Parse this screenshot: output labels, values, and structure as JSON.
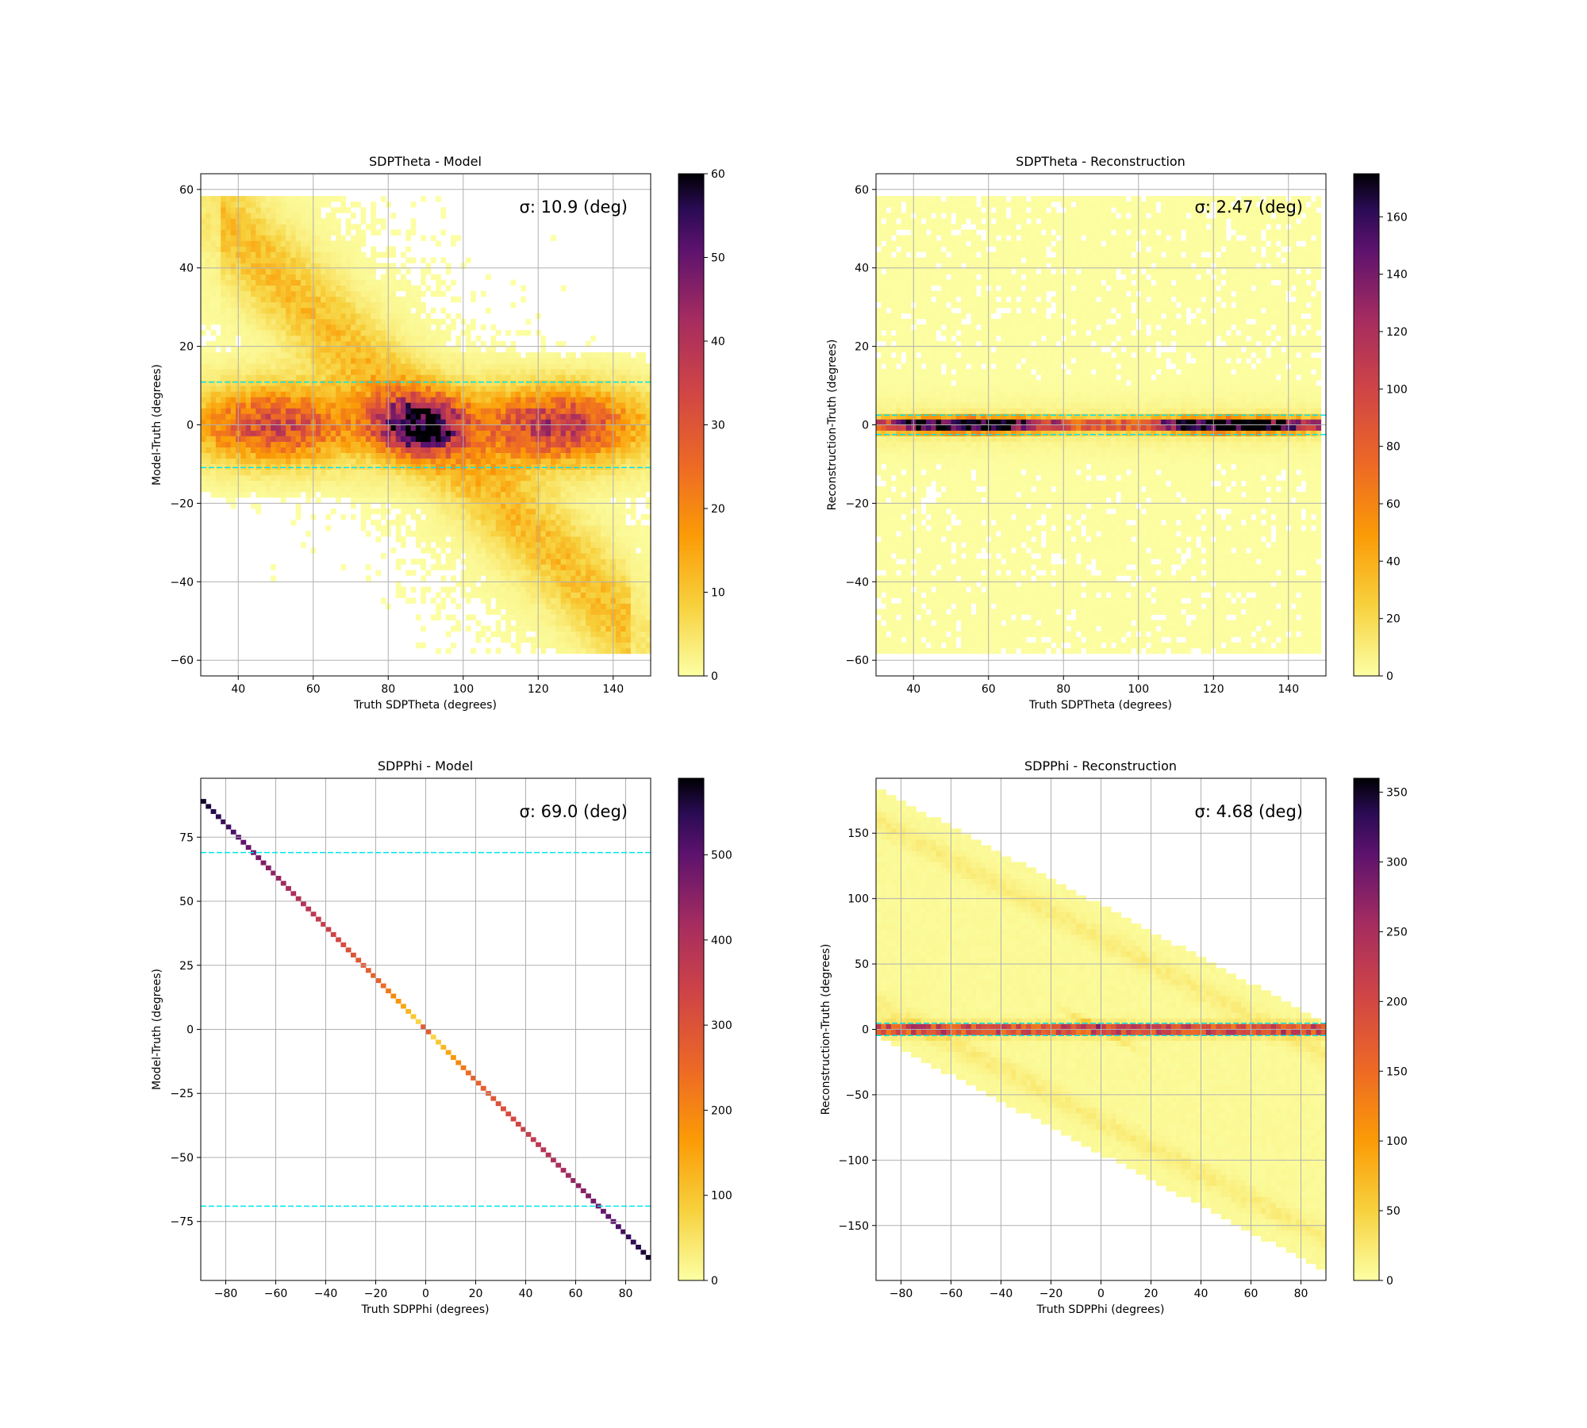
{
  "figure": {
    "colormap": "inferno_r",
    "reference_line_color": "#00e5ee",
    "grid": true
  },
  "chart_data": [
    {
      "type": "heatmap",
      "title": "SDPTheta - Model",
      "xlabel": "Truth SDPTheta (degrees)",
      "ylabel": "Model-Truth (degrees)",
      "xlim": [
        30,
        150
      ],
      "ylim": [
        -64,
        64
      ],
      "xticks": [
        40,
        60,
        80,
        100,
        120,
        140
      ],
      "yticks": [
        -60,
        -40,
        -20,
        0,
        20,
        40,
        60
      ],
      "colorbar": {
        "min": 0,
        "max": 60,
        "ticks": [
          0,
          10,
          20,
          30,
          40,
          50,
          60
        ]
      },
      "sigma_text": "σ: 10.9 (deg)",
      "sigma": 10.9,
      "reference_lines": [
        10.9,
        -10.9
      ],
      "density": {
        "pattern": "model_theta",
        "components": [
          {
            "x": 50,
            "y": 0,
            "sx": 14,
            "sy": 6,
            "peak": 30
          },
          {
            "x": 88,
            "y": 0,
            "sx": 8,
            "sy": 5,
            "peak": 55
          },
          {
            "x": 125,
            "y": 0,
            "sx": 14,
            "sy": 6,
            "peak": 35
          }
        ]
      }
    },
    {
      "type": "heatmap",
      "title": "SDPTheta - Reconstruction",
      "xlabel": "Truth SDPTheta (degrees)",
      "ylabel": "Reconstruction-Truth (degrees)",
      "xlim": [
        30,
        150
      ],
      "ylim": [
        -64,
        64
      ],
      "xticks": [
        40,
        60,
        80,
        100,
        120,
        140
      ],
      "yticks": [
        -60,
        -40,
        -20,
        0,
        20,
        40,
        60
      ],
      "colorbar": {
        "min": 0,
        "max": 175,
        "ticks": [
          0,
          20,
          40,
          60,
          80,
          100,
          120,
          140,
          160
        ]
      },
      "sigma_text": "σ: 2.47 (deg)",
      "sigma": 2.47,
      "reference_lines": [
        2.47,
        -2.47
      ],
      "density": {
        "pattern": "recon_theta",
        "components": [
          {
            "x": 55,
            "y": 0,
            "sx": 15,
            "sy": 1.2,
            "peak": 170
          },
          {
            "x": 125,
            "y": 0,
            "sx": 15,
            "sy": 1.2,
            "peak": 170
          }
        ]
      }
    },
    {
      "type": "heatmap",
      "title": "SDPPhi - Model",
      "xlabel": "Truth SDPPhi (degrees)",
      "ylabel": "Model-Truth (degrees)",
      "xlim": [
        -90,
        90
      ],
      "ylim": [
        -98,
        98
      ],
      "xticks": [
        -80,
        -60,
        -40,
        -20,
        0,
        20,
        40,
        60,
        80
      ],
      "yticks": [
        -75,
        -50,
        -25,
        0,
        25,
        50,
        75
      ],
      "colorbar": {
        "min": 0,
        "max": 590,
        "ticks": [
          0,
          100,
          200,
          300,
          400,
          500
        ]
      },
      "sigma_text": "σ: 69.0 (deg)",
      "sigma": 69.0,
      "reference_lines": [
        69.0,
        -69.0
      ],
      "density": {
        "pattern": "model_phi_diagonal",
        "slope": -1,
        "intercept": 0
      }
    },
    {
      "type": "heatmap",
      "title": "SDPPhi - Reconstruction",
      "xlabel": "Truth SDPPhi (degrees)",
      "ylabel": "Reconstruction-Truth (degrees)",
      "xlim": [
        -90,
        90
      ],
      "ylim": [
        -192,
        192
      ],
      "xticks": [
        -80,
        -60,
        -40,
        -20,
        0,
        20,
        40,
        60,
        80
      ],
      "yticks": [
        -150,
        -100,
        -50,
        0,
        50,
        100,
        150
      ],
      "colorbar": {
        "min": 0,
        "max": 360,
        "ticks": [
          0,
          50,
          100,
          150,
          200,
          250,
          300,
          350
        ]
      },
      "sigma_text": "σ: 4.68 (deg)",
      "sigma": 4.68,
      "reference_lines": [
        4.68,
        -4.68
      ],
      "density": {
        "pattern": "recon_phi",
        "band_slope": -1,
        "band_offsets": [
          70,
          -70
        ]
      }
    }
  ]
}
